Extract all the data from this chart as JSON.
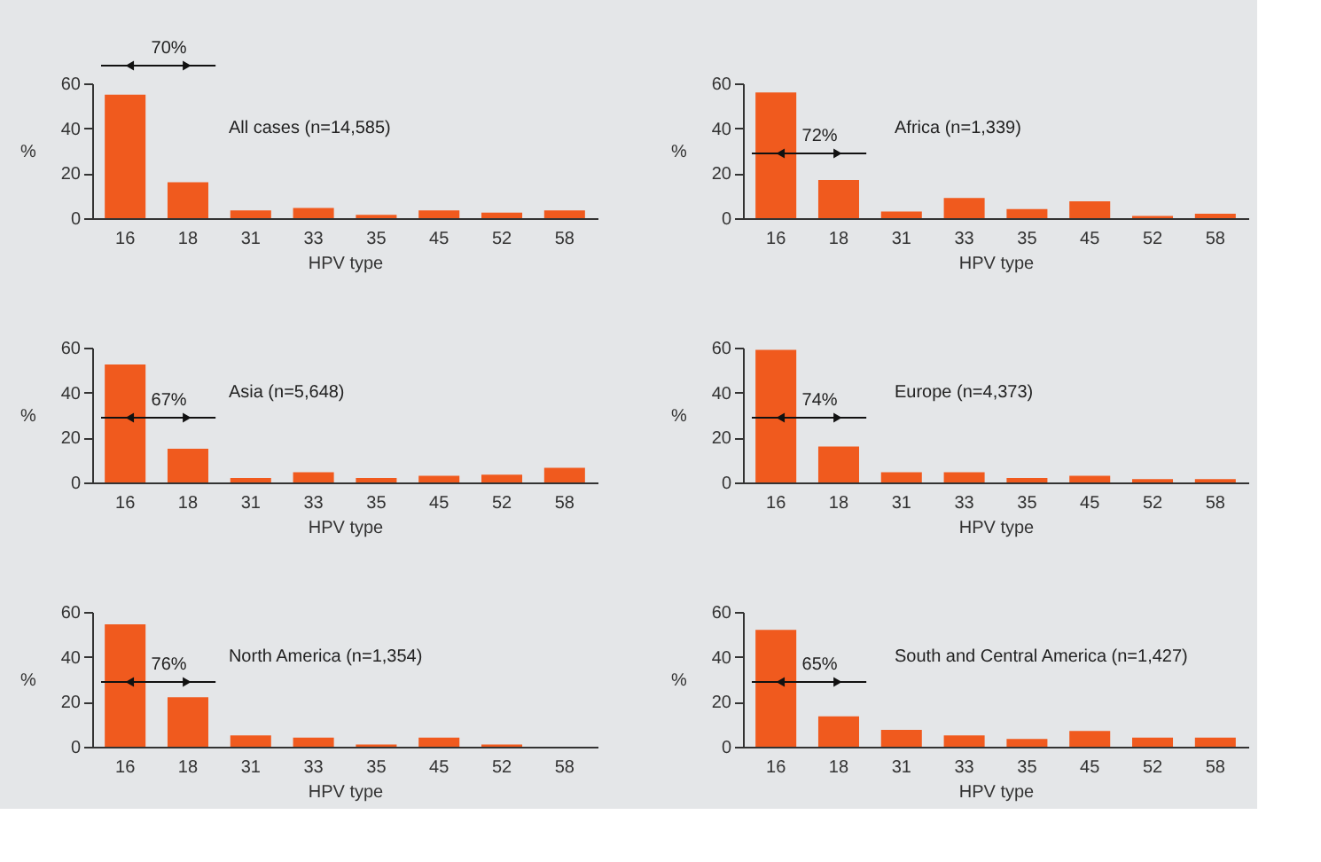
{
  "chart_data": [
    {
      "type": "bar",
      "title": "All cases (n=14,585)",
      "categories": [
        "16",
        "18",
        "31",
        "33",
        "35",
        "45",
        "52",
        "58"
      ],
      "values": [
        55,
        16,
        3.5,
        4.5,
        1.5,
        3.5,
        2.5,
        3.5
      ],
      "color": "#f05a1e",
      "xlabel": "HPV type",
      "ylabel": "%",
      "ylim": [
        0,
        60
      ],
      "yticks": [
        0,
        20,
        40,
        60
      ],
      "grid": false,
      "annotations": [
        "70%"
      ]
    },
    {
      "type": "bar",
      "title": "Africa (n=1,339)",
      "categories": [
        "16",
        "18",
        "31",
        "33",
        "35",
        "45",
        "52",
        "58"
      ],
      "values": [
        56,
        17,
        3,
        9,
        4,
        7.5,
        1,
        2
      ],
      "color": "#f05a1e",
      "xlabel": "HPV type",
      "ylabel": "%",
      "ylim": [
        0,
        60
      ],
      "yticks": [
        0,
        20,
        40,
        60
      ],
      "grid": false,
      "annotations": [
        "72%"
      ]
    },
    {
      "type": "bar",
      "title": "Asia (n=5,648)",
      "categories": [
        "16",
        "18",
        "31",
        "33",
        "35",
        "45",
        "52",
        "58"
      ],
      "values": [
        52.5,
        15,
        2,
        4.5,
        2,
        3,
        3.5,
        6.5
      ],
      "color": "#f05a1e",
      "xlabel": "HPV type",
      "ylabel": "%",
      "ylim": [
        0,
        60
      ],
      "yticks": [
        0,
        20,
        40,
        60
      ],
      "grid": false,
      "annotations": [
        "67%"
      ]
    },
    {
      "type": "bar",
      "title": "Europe (n=4,373)",
      "categories": [
        "16",
        "18",
        "31",
        "33",
        "35",
        "45",
        "52",
        "58"
      ],
      "values": [
        59,
        16,
        4.5,
        4.5,
        2,
        3,
        1.5,
        1.5
      ],
      "color": "#f05a1e",
      "xlabel": "HPV type",
      "ylabel": "%",
      "ylim": [
        0,
        60
      ],
      "yticks": [
        0,
        20,
        40,
        60
      ],
      "grid": false,
      "annotations": [
        "74%"
      ]
    },
    {
      "type": "bar",
      "title": "North America (n=1,354)",
      "categories": [
        "16",
        "18",
        "31",
        "33",
        "35",
        "45",
        "52",
        "58"
      ],
      "values": [
        54.5,
        22,
        5,
        4,
        1,
        4,
        1,
        0
      ],
      "color": "#f05a1e",
      "xlabel": "HPV type",
      "ylabel": "%",
      "ylim": [
        0,
        60
      ],
      "yticks": [
        0,
        20,
        40,
        60
      ],
      "grid": false,
      "annotations": [
        "76%"
      ]
    },
    {
      "type": "bar",
      "title": "South and Central America (n=1,427)",
      "categories": [
        "16",
        "18",
        "31",
        "33",
        "35",
        "45",
        "52",
        "58"
      ],
      "values": [
        52,
        13.5,
        7.5,
        5,
        3.5,
        7,
        4,
        4
      ],
      "color": "#f05a1e",
      "xlabel": "HPV type",
      "ylabel": "%",
      "ylim": [
        0,
        60
      ],
      "yticks": [
        0,
        20,
        40,
        60
      ],
      "grid": false,
      "annotations": [
        "65%"
      ]
    }
  ]
}
